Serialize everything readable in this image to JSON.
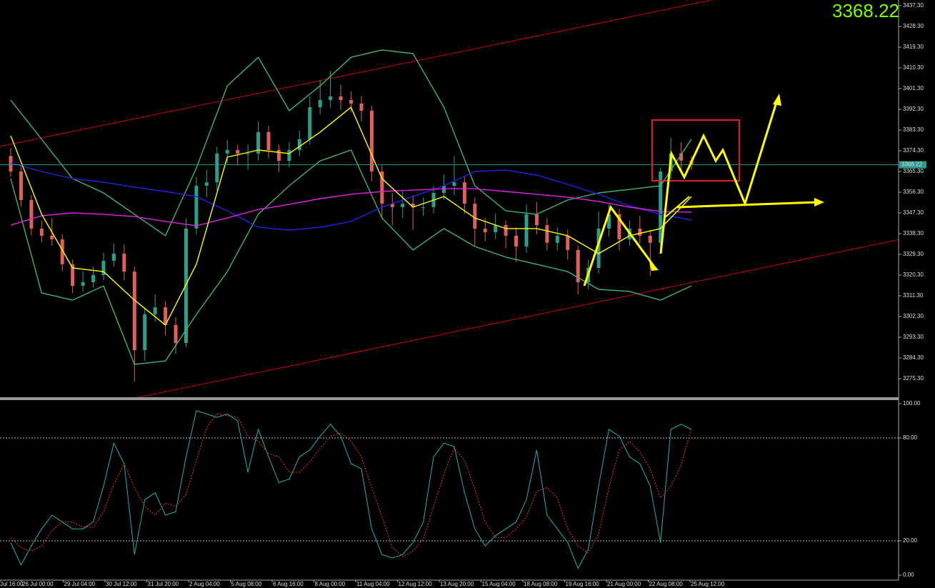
{
  "chart_data": {
    "type": "candlestick",
    "current_price": 3368.22,
    "up_color": "#2e9e8c",
    "down_color": "#e0605a",
    "ylim": [
      3266.92,
      3439.78
    ],
    "yticks": [
      {
        "value": 3437.3,
        "label": "3437.30"
      },
      {
        "value": 3428.3,
        "label": "3428.30"
      },
      {
        "value": 3419.3,
        "label": "3419.30"
      },
      {
        "value": 3410.3,
        "label": "3410.30"
      },
      {
        "value": 3401.3,
        "label": "3401.30"
      },
      {
        "value": 3392.3,
        "label": "3392.30"
      },
      {
        "value": 3383.3,
        "label": "3383.30"
      },
      {
        "value": 3374.3,
        "label": "3374.30"
      },
      {
        "value": 3365.3,
        "label": "3365.30"
      },
      {
        "value": 3356.3,
        "label": "3356.30"
      },
      {
        "value": 3347.3,
        "label": "3347.30"
      },
      {
        "value": 3338.3,
        "label": "3338.30"
      },
      {
        "value": 3329.3,
        "label": "3329.30"
      },
      {
        "value": 3320.3,
        "label": "3320.30"
      },
      {
        "value": 3311.3,
        "label": "3311.30"
      },
      {
        "value": 3302.3,
        "label": "3302.30"
      },
      {
        "value": 3293.3,
        "label": "3293.30"
      },
      {
        "value": 3284.3,
        "label": "3284.30"
      },
      {
        "value": 3275.3,
        "label": "3275.30"
      }
    ],
    "x_labels": [
      "Jul 16:00",
      "26 Jul 00:00",
      "29 Jul 04:00",
      "30 Jul 12:00",
      "31 Jul 20:00",
      "2 Aug 04:00",
      "5 Aug 08:00",
      "6 Aug 16:00",
      "8 Aug 00:00",
      "11 Aug 04:00",
      "12 Aug 12:00",
      "13 Aug 20:00",
      "15 Aug 04:00",
      "18 Aug 08:00",
      "19 Aug 16:00",
      "21 Aug 00:00",
      "22 Aug 08:00",
      "25 Aug 12:00"
    ],
    "candles": [
      [
        3372.0,
        3375.5,
        3363.0,
        3365.3
      ],
      [
        3365.3,
        3367.5,
        3350.0,
        3352.9
      ],
      [
        3352.9,
        3355.0,
        3337.5,
        3340.5
      ],
      [
        3340.5,
        3344.0,
        3334.5,
        3337.4
      ],
      [
        3337.4,
        3345.0,
        3333.0,
        3335.8
      ],
      [
        3335.8,
        3338.0,
        3322.0,
        3325.0
      ],
      [
        3325.0,
        3327.0,
        3312.5,
        3315.6
      ],
      [
        3315.6,
        3322.0,
        3313.0,
        3317.2
      ],
      [
        3317.2,
        3324.0,
        3315.0,
        3320.3
      ],
      [
        3320.3,
        3330.0,
        3318.0,
        3326.5
      ],
      [
        3326.5,
        3334.0,
        3324.0,
        3329.6
      ],
      [
        3329.6,
        3333.5,
        3318.0,
        3321.8
      ],
      [
        3321.8,
        3324.0,
        3274.0,
        3287.7
      ],
      [
        3287.7,
        3306.0,
        3283.0,
        3303.2
      ],
      [
        3303.2,
        3312.0,
        3300.0,
        3306.3
      ],
      [
        3306.3,
        3309.0,
        3294.0,
        3298.6
      ],
      [
        3298.6,
        3302.0,
        3286.0,
        3290.8
      ],
      [
        3290.8,
        3345.0,
        3289.0,
        3340.5
      ],
      [
        3340.5,
        3363.0,
        3338.0,
        3359.1
      ],
      [
        3359.1,
        3366.0,
        3354.0,
        3360.6
      ],
      [
        3360.6,
        3376.0,
        3357.0,
        3373.1
      ],
      [
        3373.1,
        3379.0,
        3369.0,
        3374.6
      ],
      [
        3374.6,
        3377.0,
        3368.0,
        3373.1
      ],
      [
        3373.1,
        3377.0,
        3366.0,
        3373.1
      ],
      [
        3373.1,
        3387.0,
        3370.0,
        3382.4
      ],
      [
        3382.4,
        3385.0,
        3371.0,
        3374.6
      ],
      [
        3374.6,
        3377.0,
        3365.0,
        3369.9
      ],
      [
        3369.9,
        3378.0,
        3367.0,
        3374.6
      ],
      [
        3374.6,
        3383.0,
        3372.0,
        3379.3
      ],
      [
        3379.3,
        3398.0,
        3377.0,
        3393.2
      ],
      [
        3393.2,
        3405.0,
        3390.0,
        3396.3
      ],
      [
        3396.3,
        3409.0,
        3393.0,
        3397.9
      ],
      [
        3397.9,
        3403.0,
        3392.0,
        3396.3
      ],
      [
        3396.3,
        3400.0,
        3391.0,
        3394.8
      ],
      [
        3394.8,
        3398.0,
        3387.0,
        3391.7
      ],
      [
        3391.7,
        3394.0,
        3361.0,
        3365.3
      ],
      [
        3365.3,
        3368.0,
        3345.0,
        3351.3
      ],
      [
        3351.3,
        3356.0,
        3342.0,
        3349.8
      ],
      [
        3349.8,
        3357.0,
        3345.0,
        3351.3
      ],
      [
        3351.3,
        3355.0,
        3340.0,
        3349.8
      ],
      [
        3349.8,
        3354.0,
        3346.0,
        3349.8
      ],
      [
        3349.8,
        3359.0,
        3347.0,
        3356.0
      ],
      [
        3356.0,
        3364.0,
        3353.0,
        3359.1
      ],
      [
        3359.1,
        3372.0,
        3355.0,
        3360.6
      ],
      [
        3360.6,
        3363.0,
        3347.0,
        3351.3
      ],
      [
        3351.3,
        3354.0,
        3333.0,
        3340.5
      ],
      [
        3340.5,
        3345.0,
        3335.0,
        3338.9
      ],
      [
        3338.9,
        3347.0,
        3336.0,
        3342.0
      ],
      [
        3342.0,
        3344.0,
        3332.0,
        3337.4
      ],
      [
        3337.4,
        3341.0,
        3326.0,
        3332.7
      ],
      [
        3332.7,
        3351.0,
        3330.0,
        3346.7
      ],
      [
        3346.7,
        3352.0,
        3338.0,
        3342.0
      ],
      [
        3342.0,
        3345.0,
        3331.0,
        3334.3
      ],
      [
        3334.3,
        3341.0,
        3331.0,
        3337.4
      ],
      [
        3337.4,
        3340.0,
        3327.0,
        3331.2
      ],
      [
        3331.2,
        3333.0,
        3312.0,
        3317.2
      ],
      [
        3317.2,
        3327.0,
        3314.0,
        3323.4
      ],
      [
        3323.4,
        3348.0,
        3321.0,
        3340.5
      ],
      [
        3340.5,
        3351.0,
        3337.0,
        3346.7
      ],
      [
        3346.7,
        3349.0,
        3331.0,
        3335.8
      ],
      [
        3335.8,
        3344.0,
        3333.0,
        3340.5
      ],
      [
        3340.5,
        3346.0,
        3334.0,
        3337.4
      ],
      [
        3337.4,
        3340.0,
        3320.0,
        3334.3
      ],
      [
        3334.3,
        3367.0,
        3331.0,
        3365.3
      ],
      [
        3365.3,
        3380.0,
        3362.0,
        3373.1
      ],
      [
        3373.1,
        3378.0,
        3366.0,
        3370.0
      ],
      [
        3370.0,
        3372.0,
        3366.0,
        3368.2
      ]
    ],
    "line_x": [
      0,
      3,
      6,
      9,
      12,
      15,
      18,
      21,
      24,
      27,
      30,
      33,
      36,
      39,
      42,
      45,
      48,
      51,
      54,
      57,
      60,
      63,
      66
    ],
    "lines": [
      {
        "color": "#3cb371",
        "values": [
          3396.3,
          3379.3,
          3362.2,
          3356.0,
          3346.7,
          3337.4,
          3366.8,
          3402.5,
          3414.9,
          3391.7,
          3402.5,
          3414.9,
          3418.1,
          3416.5,
          3393.2,
          3359.1,
          3348.2,
          3346.7,
          3352.9,
          3356.0,
          3357.5,
          3359.1,
          3379.3
        ]
      },
      {
        "color": "#3cb371",
        "values": [
          3362.2,
          3312.5,
          3309.4,
          3315.6,
          3281.5,
          3283.0,
          3303.2,
          3321.8,
          3346.7,
          3359.1,
          3369.9,
          3374.6,
          3345.1,
          3331.2,
          3340.5,
          3332.7,
          3328.1,
          3325.0,
          3321.8,
          3314.1,
          3313.2,
          3309.4,
          3315.6
        ]
      },
      {
        "color": "#2424e0",
        "values": [
          3369.0,
          3365.3,
          3362.2,
          3360.6,
          3358.5,
          3356.6,
          3354.4,
          3348.2,
          3341.1,
          3339.8,
          3341.1,
          3343.6,
          3349.8,
          3354.4,
          3359.1,
          3365.3,
          3365.9,
          3363.7,
          3359.7,
          3355.4,
          3350.4,
          3346.7,
          3344.2
        ]
      },
      {
        "color": "#e020e0",
        "values": [
          3342.0,
          3346.1,
          3347.3,
          3346.7,
          3345.7,
          3343.6,
          3341.7,
          3345.1,
          3348.8,
          3351.0,
          3353.5,
          3355.4,
          3356.6,
          3357.2,
          3357.8,
          3357.8,
          3356.6,
          3355.4,
          3354.1,
          3352.3,
          3349.8,
          3347.9,
          3347.6
        ]
      },
      {
        "color": "#ffff00",
        "values": [
          3380.8,
          3346.7,
          3323.4,
          3321.8,
          3309.4,
          3298.6,
          3325.0,
          3371.5,
          3374.6,
          3373.1,
          3382.4,
          3393.2,
          3362.2,
          3349.8,
          3354.4,
          3345.1,
          3340.5,
          3340.5,
          3337.4,
          3329.6,
          3337.4,
          3340.5,
          3354.4
        ]
      }
    ],
    "channels": [
      {
        "color": "#cc0000",
        "x": [
          -1,
          68
        ],
        "values": [
          3376.2,
          3439.8
        ]
      },
      {
        "color": "#cc0000",
        "x": [
          12.1,
          86.2
        ],
        "values": [
          3266.9,
          3335.8
        ]
      }
    ],
    "stochastic": {
      "ylim": [
        -2.92,
        102.08
      ],
      "yticks": [
        {
          "value": 100,
          "label": "100.00"
        },
        {
          "value": 80,
          "label": "80.00"
        },
        {
          "value": 20,
          "label": "20.00"
        },
        {
          "value": 0,
          "label": "0.00"
        }
      ],
      "series": [
        {
          "color": "#20b2aa",
          "dashed": false,
          "values": [
            19,
            6,
            17,
            27,
            35,
            31,
            27,
            27,
            31,
            52,
            77,
            65,
            12,
            44,
            48,
            35,
            37,
            69,
            96,
            94,
            92,
            94,
            90,
            60,
            85,
            69,
            54,
            56,
            69,
            73,
            81,
            88,
            81,
            65,
            62,
            27,
            12,
            10,
            12,
            19,
            31,
            69,
            77,
            75,
            48,
            27,
            17,
            23,
            27,
            31,
            44,
            73,
            35,
            27,
            19,
            4,
            15,
            52,
            85,
            81,
            69,
            65,
            52,
            19,
            85,
            88,
            85
          ]
        },
        {
          "color": "#ff3030",
          "dashed": true,
          "values": [
            22,
            16,
            14,
            17,
            26,
            31,
            31,
            28,
            28,
            37,
            53,
            65,
            51,
            40,
            35,
            42,
            40,
            47,
            67,
            86,
            94,
            93,
            92,
            81,
            78,
            71,
            69,
            60,
            60,
            66,
            74,
            81,
            83,
            78,
            69,
            51,
            34,
            16,
            11,
            14,
            21,
            40,
            59,
            74,
            67,
            50,
            31,
            22,
            22,
            27,
            34,
            49,
            51,
            45,
            27,
            17,
            13,
            24,
            51,
            73,
            78,
            72,
            62,
            45,
            52,
            64,
            86
          ]
        }
      ]
    }
  }
}
